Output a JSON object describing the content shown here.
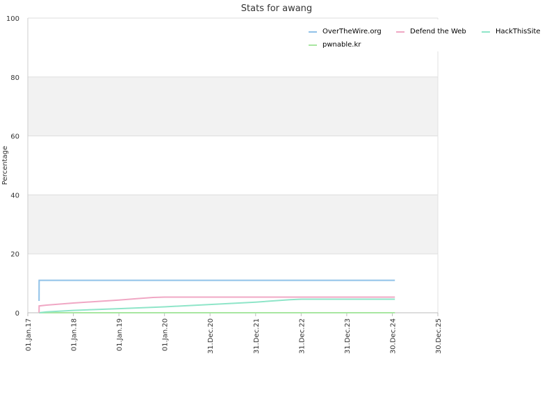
{
  "chart_data": {
    "type": "line",
    "title": "Stats for awang",
    "xlabel": "",
    "ylabel": "Percentage",
    "ylim": [
      0,
      100
    ],
    "y_ticks": [
      0,
      20,
      40,
      60,
      80,
      100
    ],
    "x_ticks": [
      "01.Jan.17",
      "01.Jan.18",
      "01.Jan.19",
      "01.Jan.20",
      "31.Dec.20",
      "31.Dec.21",
      "31.Dec.22",
      "31.Dec.23",
      "30.Dec.24",
      "30.Dec.25"
    ],
    "grid": true,
    "alternating_bands": true,
    "legend": "top-right",
    "colors": {
      "band": "#f2f2f2",
      "grid": "#dddddd",
      "axis": "#bbbbbb"
    },
    "series": [
      {
        "name": "OverTheWire.org",
        "color": "#8fc1e8",
        "points": [
          [
            "2017-04-01",
            4
          ],
          [
            "2017-04-02",
            11
          ],
          [
            "2025-01-20",
            11
          ]
        ]
      },
      {
        "name": "Defend the Web",
        "color": "#f0a7c4",
        "points": [
          [
            "2017-04-01",
            0
          ],
          [
            "2017-04-02",
            2.3
          ],
          [
            "2017-06-01",
            2.6
          ],
          [
            "2018-01-01",
            3.3
          ],
          [
            "2018-07-01",
            3.8
          ],
          [
            "2019-01-01",
            4.3
          ],
          [
            "2019-06-01",
            4.8
          ],
          [
            "2019-10-01",
            5.2
          ],
          [
            "2020-01-01",
            5.3
          ],
          [
            "2025-01-20",
            5.3
          ]
        ]
      },
      {
        "name": "HackThisSite",
        "color": "#8ee5c8",
        "points": [
          [
            "2017-04-01",
            0
          ],
          [
            "2017-06-01",
            0.3
          ],
          [
            "2018-01-01",
            0.8
          ],
          [
            "2019-01-01",
            1.4
          ],
          [
            "2020-01-01",
            2.0
          ],
          [
            "2021-01-01",
            2.8
          ],
          [
            "2022-01-01",
            3.6
          ],
          [
            "2022-10-01",
            4.4
          ],
          [
            "2023-01-01",
            4.6
          ],
          [
            "2025-01-20",
            4.6
          ]
        ]
      },
      {
        "name": "pwnable.kr",
        "color": "#a8e6a0",
        "points": [
          [
            "2017-04-01",
            0
          ],
          [
            "2025-01-20",
            0
          ]
        ]
      }
    ]
  }
}
